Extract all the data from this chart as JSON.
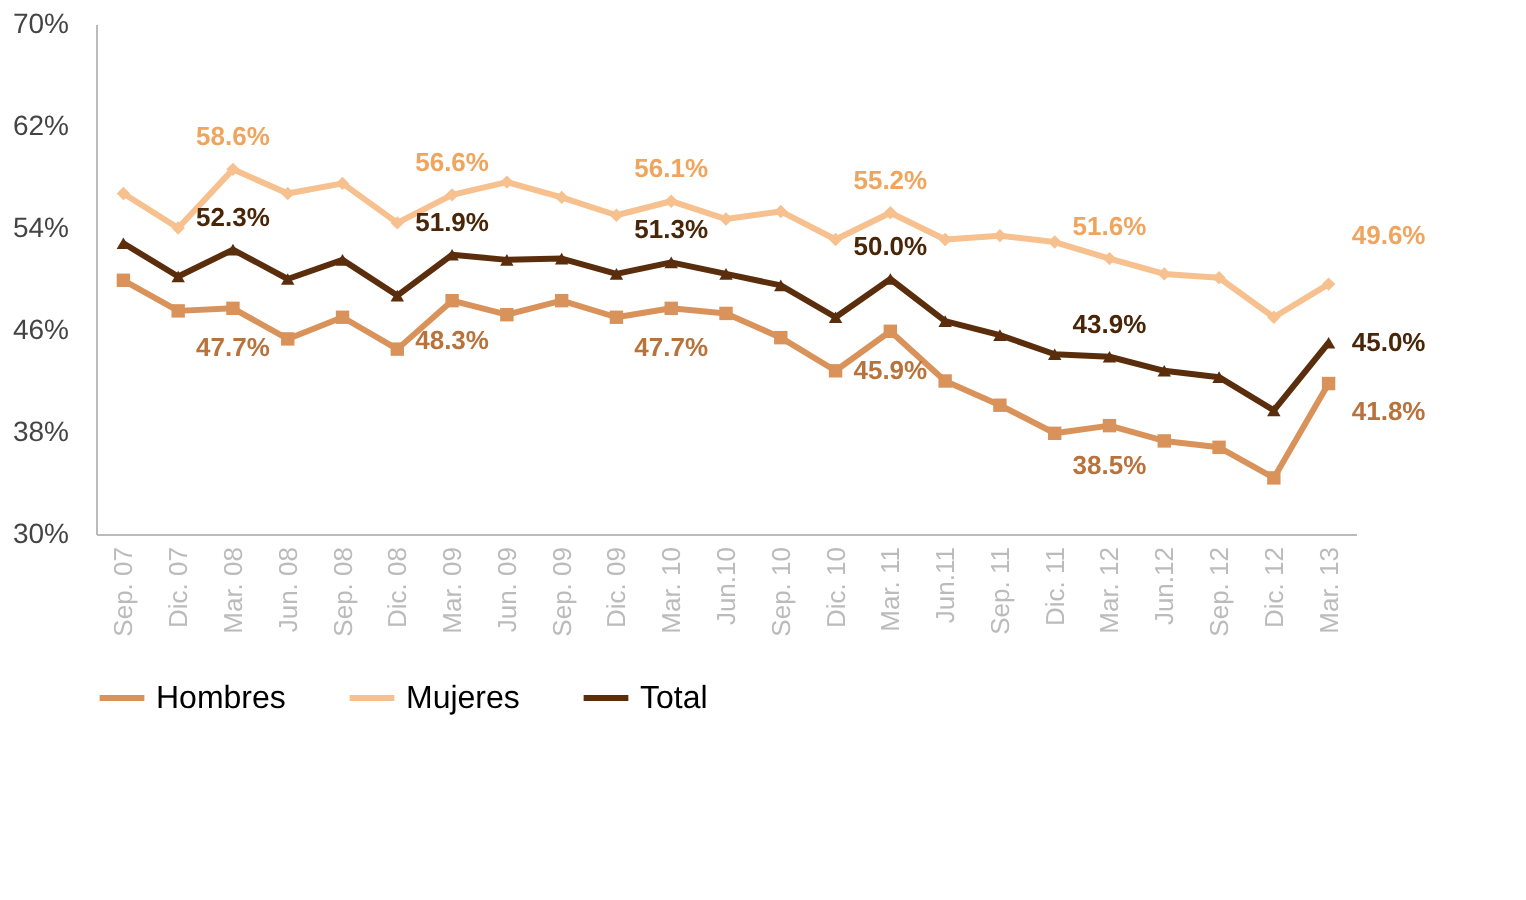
{
  "chart_data": {
    "type": "line",
    "categories": [
      "Sep. 07",
      "Dic. 07",
      "Mar. 08",
      "Jun. 08",
      "Sep. 08",
      "Dic. 08",
      "Mar. 09",
      "Jun. 09",
      "Sep. 09",
      "Dic. 09",
      "Mar. 10",
      "Jun.10",
      "Sep. 10",
      "Dic. 10",
      "Mar. 11",
      "Jun.11",
      "Sep. 11",
      "Dic. 11",
      "Mar. 12",
      "Jun.12",
      "Sep. 12",
      "Dic. 12",
      "Mar. 13"
    ],
    "series": [
      {
        "name": "Hombres",
        "color": "#d9935a",
        "marker": "square",
        "values": [
          49.9,
          47.5,
          47.7,
          45.3,
          47.0,
          44.5,
          48.3,
          47.2,
          48.3,
          47.0,
          47.7,
          47.3,
          45.4,
          42.8,
          45.9,
          42.0,
          40.1,
          37.9,
          38.5,
          37.3,
          36.8,
          34.4,
          41.8
        ],
        "value_labels": [
          null,
          null,
          "47.7%",
          null,
          null,
          null,
          "48.3%",
          null,
          null,
          null,
          "47.7%",
          null,
          null,
          null,
          "45.9%",
          null,
          null,
          null,
          "38.5%",
          null,
          null,
          null,
          "41.8%"
        ]
      },
      {
        "name": "Mujeres",
        "color": "#f7c08f",
        "marker": "diamond",
        "values": [
          56.7,
          54.0,
          58.6,
          56.7,
          57.5,
          54.4,
          56.6,
          57.6,
          56.4,
          55.0,
          56.1,
          54.7,
          55.3,
          53.1,
          55.2,
          53.1,
          53.4,
          52.9,
          51.6,
          50.4,
          50.1,
          47.0,
          49.6
        ],
        "value_labels": [
          null,
          null,
          "58.6%",
          null,
          null,
          null,
          "56.6%",
          null,
          null,
          null,
          "56.1%",
          null,
          null,
          null,
          "55.2%",
          null,
          null,
          null,
          "51.6%",
          null,
          null,
          null,
          "49.6%"
        ]
      },
      {
        "name": "Total",
        "color": "#5a2d0c",
        "marker": "triangle",
        "values": [
          52.8,
          50.2,
          52.3,
          50.0,
          51.5,
          48.7,
          51.9,
          51.5,
          51.6,
          50.4,
          51.3,
          50.4,
          49.5,
          47.0,
          50.0,
          46.7,
          45.6,
          44.1,
          43.9,
          42.8,
          42.3,
          39.7,
          45.0
        ],
        "value_labels": [
          null,
          null,
          "52.3%",
          null,
          null,
          null,
          "51.9%",
          null,
          null,
          null,
          "51.3%",
          null,
          null,
          null,
          "50.0%",
          null,
          null,
          null,
          "43.9%",
          null,
          null,
          null,
          "45.0%"
        ]
      }
    ],
    "ylim": [
      30,
      70
    ],
    "yticks": [
      {
        "value": 30,
        "label": "30%"
      },
      {
        "value": 38,
        "label": "38%"
      },
      {
        "value": 46,
        "label": "46%"
      },
      {
        "value": 54,
        "label": "54%"
      },
      {
        "value": 62,
        "label": "62%"
      },
      {
        "value": 70,
        "label": "70%"
      }
    ],
    "grid": false,
    "legend": "bottom",
    "line_style": "solid"
  }
}
